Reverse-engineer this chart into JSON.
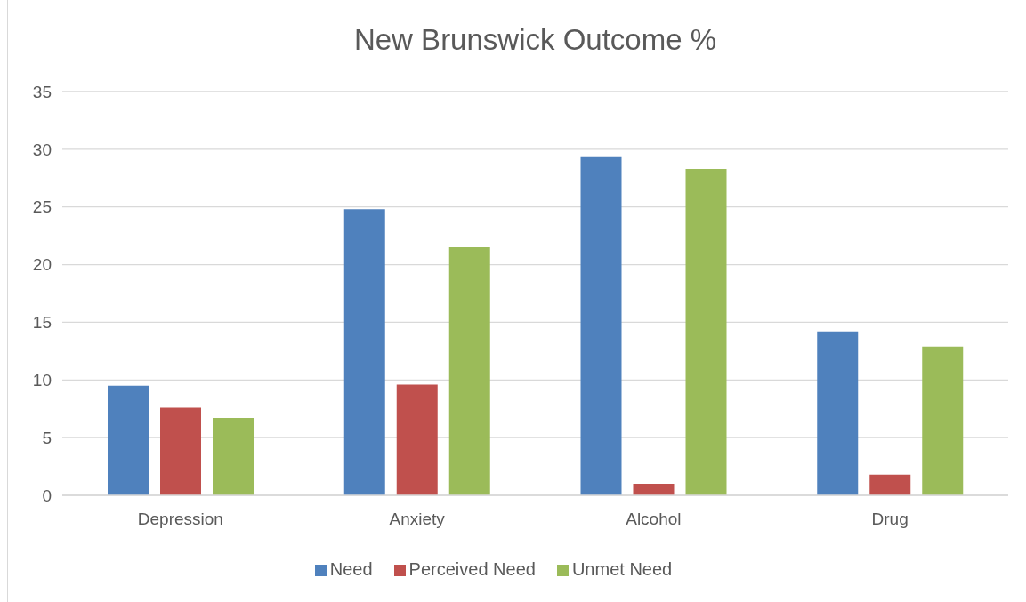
{
  "chart_data": {
    "type": "bar",
    "title": "New Brunswick Outcome %",
    "categories": [
      "Depression",
      "Anxiety",
      "Alcohol",
      "Drug"
    ],
    "series": [
      {
        "name": "Need",
        "color": "#4f81bd",
        "values": [
          9.5,
          24.8,
          29.4,
          14.2
        ]
      },
      {
        "name": "Perceived Need",
        "color": "#c0504d",
        "values": [
          7.6,
          9.6,
          1.0,
          1.8
        ]
      },
      {
        "name": "Unmet Need",
        "color": "#9bbb59",
        "values": [
          6.7,
          21.5,
          28.3,
          12.9
        ]
      }
    ],
    "ylim": [
      0,
      35
    ],
    "yticks": [
      0,
      5,
      10,
      15,
      20,
      25,
      30,
      35
    ],
    "grid": "y",
    "legend": "bottom"
  }
}
